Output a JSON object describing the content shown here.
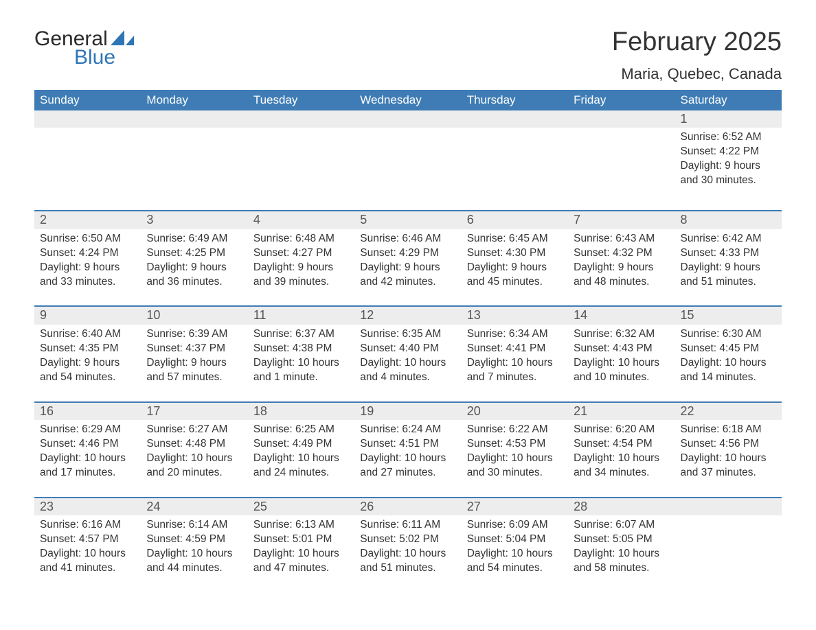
{
  "logo": {
    "word1": "General",
    "word2": "Blue",
    "brand_color": "#2e75b6"
  },
  "title": "February 2025",
  "location": "Maria, Quebec, Canada",
  "colors": {
    "header_bg": "#3f7cb5",
    "header_text": "#ffffff",
    "daynum_bg": "#ededed",
    "row_divider": "#3f7cb5",
    "body_text": "#333333",
    "background": "#ffffff"
  },
  "layout": {
    "type": "calendar",
    "columns": 7,
    "weeks": 5,
    "fontsize_title": 38,
    "fontsize_location": 22,
    "fontsize_dayheader": 17,
    "fontsize_daynum": 18,
    "fontsize_body": 15.5
  },
  "day_headers": [
    "Sunday",
    "Monday",
    "Tuesday",
    "Wednesday",
    "Thursday",
    "Friday",
    "Saturday"
  ],
  "weeks": [
    [
      {
        "empty": true
      },
      {
        "empty": true
      },
      {
        "empty": true
      },
      {
        "empty": true
      },
      {
        "empty": true
      },
      {
        "empty": true
      },
      {
        "day": "1",
        "sunrise": "Sunrise: 6:52 AM",
        "sunset": "Sunset: 4:22 PM",
        "daylight": "Daylight: 9 hours and 30 minutes."
      }
    ],
    [
      {
        "day": "2",
        "sunrise": "Sunrise: 6:50 AM",
        "sunset": "Sunset: 4:24 PM",
        "daylight": "Daylight: 9 hours and 33 minutes."
      },
      {
        "day": "3",
        "sunrise": "Sunrise: 6:49 AM",
        "sunset": "Sunset: 4:25 PM",
        "daylight": "Daylight: 9 hours and 36 minutes."
      },
      {
        "day": "4",
        "sunrise": "Sunrise: 6:48 AM",
        "sunset": "Sunset: 4:27 PM",
        "daylight": "Daylight: 9 hours and 39 minutes."
      },
      {
        "day": "5",
        "sunrise": "Sunrise: 6:46 AM",
        "sunset": "Sunset: 4:29 PM",
        "daylight": "Daylight: 9 hours and 42 minutes."
      },
      {
        "day": "6",
        "sunrise": "Sunrise: 6:45 AM",
        "sunset": "Sunset: 4:30 PM",
        "daylight": "Daylight: 9 hours and 45 minutes."
      },
      {
        "day": "7",
        "sunrise": "Sunrise: 6:43 AM",
        "sunset": "Sunset: 4:32 PM",
        "daylight": "Daylight: 9 hours and 48 minutes."
      },
      {
        "day": "8",
        "sunrise": "Sunrise: 6:42 AM",
        "sunset": "Sunset: 4:33 PM",
        "daylight": "Daylight: 9 hours and 51 minutes."
      }
    ],
    [
      {
        "day": "9",
        "sunrise": "Sunrise: 6:40 AM",
        "sunset": "Sunset: 4:35 PM",
        "daylight": "Daylight: 9 hours and 54 minutes."
      },
      {
        "day": "10",
        "sunrise": "Sunrise: 6:39 AM",
        "sunset": "Sunset: 4:37 PM",
        "daylight": "Daylight: 9 hours and 57 minutes."
      },
      {
        "day": "11",
        "sunrise": "Sunrise: 6:37 AM",
        "sunset": "Sunset: 4:38 PM",
        "daylight": "Daylight: 10 hours and 1 minute."
      },
      {
        "day": "12",
        "sunrise": "Sunrise: 6:35 AM",
        "sunset": "Sunset: 4:40 PM",
        "daylight": "Daylight: 10 hours and 4 minutes."
      },
      {
        "day": "13",
        "sunrise": "Sunrise: 6:34 AM",
        "sunset": "Sunset: 4:41 PM",
        "daylight": "Daylight: 10 hours and 7 minutes."
      },
      {
        "day": "14",
        "sunrise": "Sunrise: 6:32 AM",
        "sunset": "Sunset: 4:43 PM",
        "daylight": "Daylight: 10 hours and 10 minutes."
      },
      {
        "day": "15",
        "sunrise": "Sunrise: 6:30 AM",
        "sunset": "Sunset: 4:45 PM",
        "daylight": "Daylight: 10 hours and 14 minutes."
      }
    ],
    [
      {
        "day": "16",
        "sunrise": "Sunrise: 6:29 AM",
        "sunset": "Sunset: 4:46 PM",
        "daylight": "Daylight: 10 hours and 17 minutes."
      },
      {
        "day": "17",
        "sunrise": "Sunrise: 6:27 AM",
        "sunset": "Sunset: 4:48 PM",
        "daylight": "Daylight: 10 hours and 20 minutes."
      },
      {
        "day": "18",
        "sunrise": "Sunrise: 6:25 AM",
        "sunset": "Sunset: 4:49 PM",
        "daylight": "Daylight: 10 hours and 24 minutes."
      },
      {
        "day": "19",
        "sunrise": "Sunrise: 6:24 AM",
        "sunset": "Sunset: 4:51 PM",
        "daylight": "Daylight: 10 hours and 27 minutes."
      },
      {
        "day": "20",
        "sunrise": "Sunrise: 6:22 AM",
        "sunset": "Sunset: 4:53 PM",
        "daylight": "Daylight: 10 hours and 30 minutes."
      },
      {
        "day": "21",
        "sunrise": "Sunrise: 6:20 AM",
        "sunset": "Sunset: 4:54 PM",
        "daylight": "Daylight: 10 hours and 34 minutes."
      },
      {
        "day": "22",
        "sunrise": "Sunrise: 6:18 AM",
        "sunset": "Sunset: 4:56 PM",
        "daylight": "Daylight: 10 hours and 37 minutes."
      }
    ],
    [
      {
        "day": "23",
        "sunrise": "Sunrise: 6:16 AM",
        "sunset": "Sunset: 4:57 PM",
        "daylight": "Daylight: 10 hours and 41 minutes."
      },
      {
        "day": "24",
        "sunrise": "Sunrise: 6:14 AM",
        "sunset": "Sunset: 4:59 PM",
        "daylight": "Daylight: 10 hours and 44 minutes."
      },
      {
        "day": "25",
        "sunrise": "Sunrise: 6:13 AM",
        "sunset": "Sunset: 5:01 PM",
        "daylight": "Daylight: 10 hours and 47 minutes."
      },
      {
        "day": "26",
        "sunrise": "Sunrise: 6:11 AM",
        "sunset": "Sunset: 5:02 PM",
        "daylight": "Daylight: 10 hours and 51 minutes."
      },
      {
        "day": "27",
        "sunrise": "Sunrise: 6:09 AM",
        "sunset": "Sunset: 5:04 PM",
        "daylight": "Daylight: 10 hours and 54 minutes."
      },
      {
        "day": "28",
        "sunrise": "Sunrise: 6:07 AM",
        "sunset": "Sunset: 5:05 PM",
        "daylight": "Daylight: 10 hours and 58 minutes."
      },
      {
        "empty": true
      }
    ]
  ]
}
